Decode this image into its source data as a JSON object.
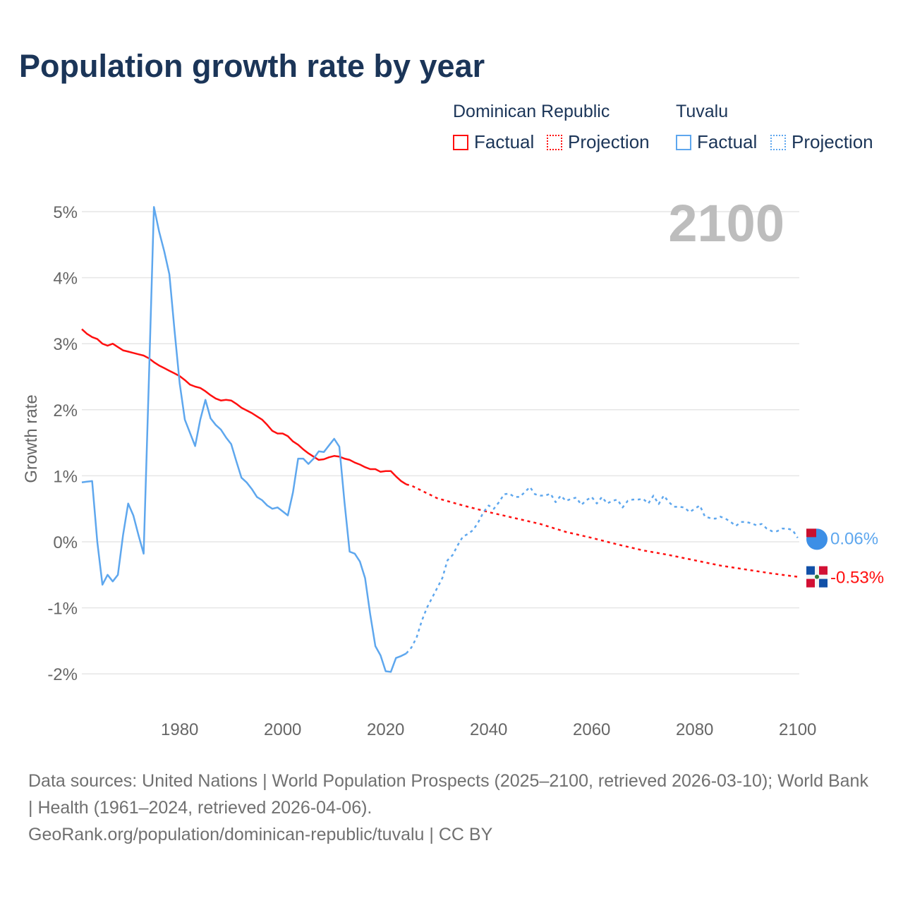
{
  "title": "Population growth rate by year",
  "legend": {
    "groups": [
      {
        "name": "Dominican Republic",
        "items": [
          "Factual",
          "Projection"
        ],
        "color": "#ff1010"
      },
      {
        "name": "Tuvalu",
        "items": [
          "Factual",
          "Projection"
        ],
        "color": "#5ea7ee"
      }
    ]
  },
  "footer": {
    "line1": "Data sources: United Nations | World Population Prospects (2025–2100, retrieved 2026-03-10); World Bank | Health (1961–2024, retrieved 2026-04-06).",
    "line2": "GeoRank.org/population/dominican-republic/tuvalu | CC BY"
  },
  "chart_data": {
    "type": "line",
    "title": "Population growth rate by year",
    "ylabel": "Growth rate",
    "xlabel": "",
    "year_label": "2100",
    "xlim": [
      1961,
      2100
    ],
    "ylim": [
      -2.5,
      5.2
    ],
    "xticks": [
      "1980",
      "2000",
      "2020",
      "2040",
      "2060",
      "2080",
      "2100"
    ],
    "yticks": [
      "5%",
      "4%",
      "3%",
      "2%",
      "1%",
      "0%",
      "-1%",
      "-2%"
    ],
    "end_labels": {
      "tuvalu": "0.06%",
      "dominican": "-0.53%"
    },
    "series": [
      {
        "name": "Dominican Republic Factual",
        "color": "#ff1010",
        "dashed": false,
        "start": 1961,
        "values": [
          3.22,
          3.15,
          3.1,
          3.07,
          3.0,
          2.97,
          3.0,
          2.95,
          2.9,
          2.88,
          2.86,
          2.84,
          2.82,
          2.78,
          2.72,
          2.67,
          2.63,
          2.59,
          2.55,
          2.51,
          2.45,
          2.38,
          2.35,
          2.33,
          2.28,
          2.22,
          2.17,
          2.14,
          2.15,
          2.14,
          2.09,
          2.03,
          1.99,
          1.95,
          1.9,
          1.85,
          1.77,
          1.68,
          1.64,
          1.64,
          1.6,
          1.52,
          1.47,
          1.4,
          1.34,
          1.29,
          1.24,
          1.25,
          1.28,
          1.3,
          1.29,
          1.26,
          1.24,
          1.2,
          1.17,
          1.13,
          1.1,
          1.1,
          1.06,
          1.07,
          1.07,
          0.99,
          0.92,
          0.87
        ]
      },
      {
        "name": "Dominican Republic Projection",
        "color": "#ff1010",
        "dashed": true,
        "x": [
          2024,
          2025,
          2030,
          2035,
          2040,
          2045,
          2050,
          2055,
          2060,
          2065,
          2070,
          2075,
          2080,
          2085,
          2090,
          2095,
          2100
        ],
        "values": [
          0.87,
          0.85,
          0.66,
          0.55,
          0.45,
          0.36,
          0.27,
          0.15,
          0.06,
          -0.04,
          -0.13,
          -0.2,
          -0.28,
          -0.36,
          -0.42,
          -0.48,
          -0.53
        ]
      },
      {
        "name": "Tuvalu Factual",
        "color": "#5ea7ee",
        "dashed": false,
        "start": 1961,
        "values": [
          0.9,
          0.91,
          0.92,
          0.0,
          -0.65,
          -0.5,
          -0.6,
          -0.5,
          0.1,
          0.58,
          0.4,
          0.1,
          -0.18,
          2.4,
          5.07,
          4.7,
          4.4,
          4.05,
          3.2,
          2.4,
          1.85,
          1.65,
          1.45,
          1.85,
          2.15,
          1.87,
          1.77,
          1.7,
          1.58,
          1.48,
          1.22,
          0.97,
          0.9,
          0.8,
          0.68,
          0.63,
          0.55,
          0.5,
          0.52,
          0.46,
          0.4,
          0.75,
          1.26,
          1.26,
          1.18,
          1.26,
          1.37,
          1.36,
          1.46,
          1.56,
          1.44,
          0.6,
          -0.15,
          -0.18,
          -0.3,
          -0.55,
          -1.1,
          -1.58,
          -1.72,
          -1.96,
          -1.97,
          -1.76,
          -1.73,
          -1.69
        ]
      },
      {
        "name": "Tuvalu Projection",
        "color": "#5ea7ee",
        "dashed": true,
        "start": 2024,
        "values": [
          -1.69,
          -1.6,
          -1.45,
          -1.2,
          -1.0,
          -0.85,
          -0.7,
          -0.55,
          -0.28,
          -0.2,
          -0.05,
          0.08,
          0.12,
          0.18,
          0.3,
          0.45,
          0.55,
          0.5,
          0.6,
          0.72,
          0.73,
          0.68,
          0.68,
          0.75,
          0.83,
          0.72,
          0.7,
          0.7,
          0.73,
          0.6,
          0.7,
          0.62,
          0.65,
          0.67,
          0.56,
          0.63,
          0.68,
          0.58,
          0.68,
          0.58,
          0.62,
          0.64,
          0.52,
          0.62,
          0.64,
          0.64,
          0.65,
          0.58,
          0.7,
          0.57,
          0.7,
          0.6,
          0.53,
          0.53,
          0.52,
          0.45,
          0.5,
          0.55,
          0.38,
          0.36,
          0.35,
          0.38,
          0.35,
          0.3,
          0.24,
          0.3,
          0.3,
          0.28,
          0.25,
          0.27,
          0.2,
          0.16,
          0.16,
          0.2,
          0.2,
          0.18,
          0.06
        ]
      }
    ]
  }
}
